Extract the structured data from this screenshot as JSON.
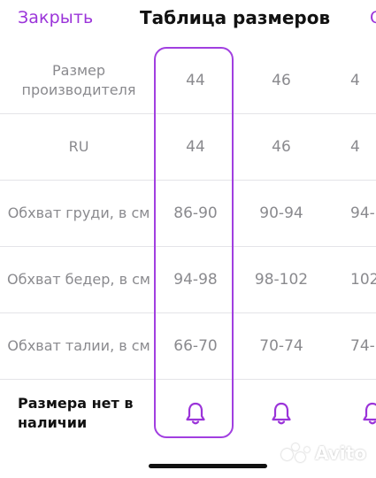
{
  "header": {
    "close_label": "Закрыть",
    "title": "Таблица размеров",
    "right_partial": "С"
  },
  "table": {
    "rows": [
      {
        "label": "Размер производителя",
        "values": [
          "44",
          "46",
          "4"
        ]
      },
      {
        "label": "RU",
        "values": [
          "44",
          "46",
          "4"
        ]
      },
      {
        "label": "Обхват груди, в см",
        "values": [
          "86-90",
          "90-94",
          "94-"
        ]
      },
      {
        "label": "Обхват бедер, в см",
        "values": [
          "94-98",
          "98-102",
          "102-"
        ]
      },
      {
        "label": "Обхват талии, в см",
        "values": [
          "66-70",
          "70-74",
          "74-"
        ]
      }
    ],
    "availability_row": {
      "label": "Размера нет в наличии",
      "icon": "bell-icon"
    }
  },
  "watermark": {
    "text": "Avito"
  },
  "colors": {
    "accent": "#9b34d9",
    "highlight_border": "#a13fe0",
    "text_primary": "#111111",
    "text_secondary": "#8a8a8e",
    "divider": "#e4e4e8"
  }
}
